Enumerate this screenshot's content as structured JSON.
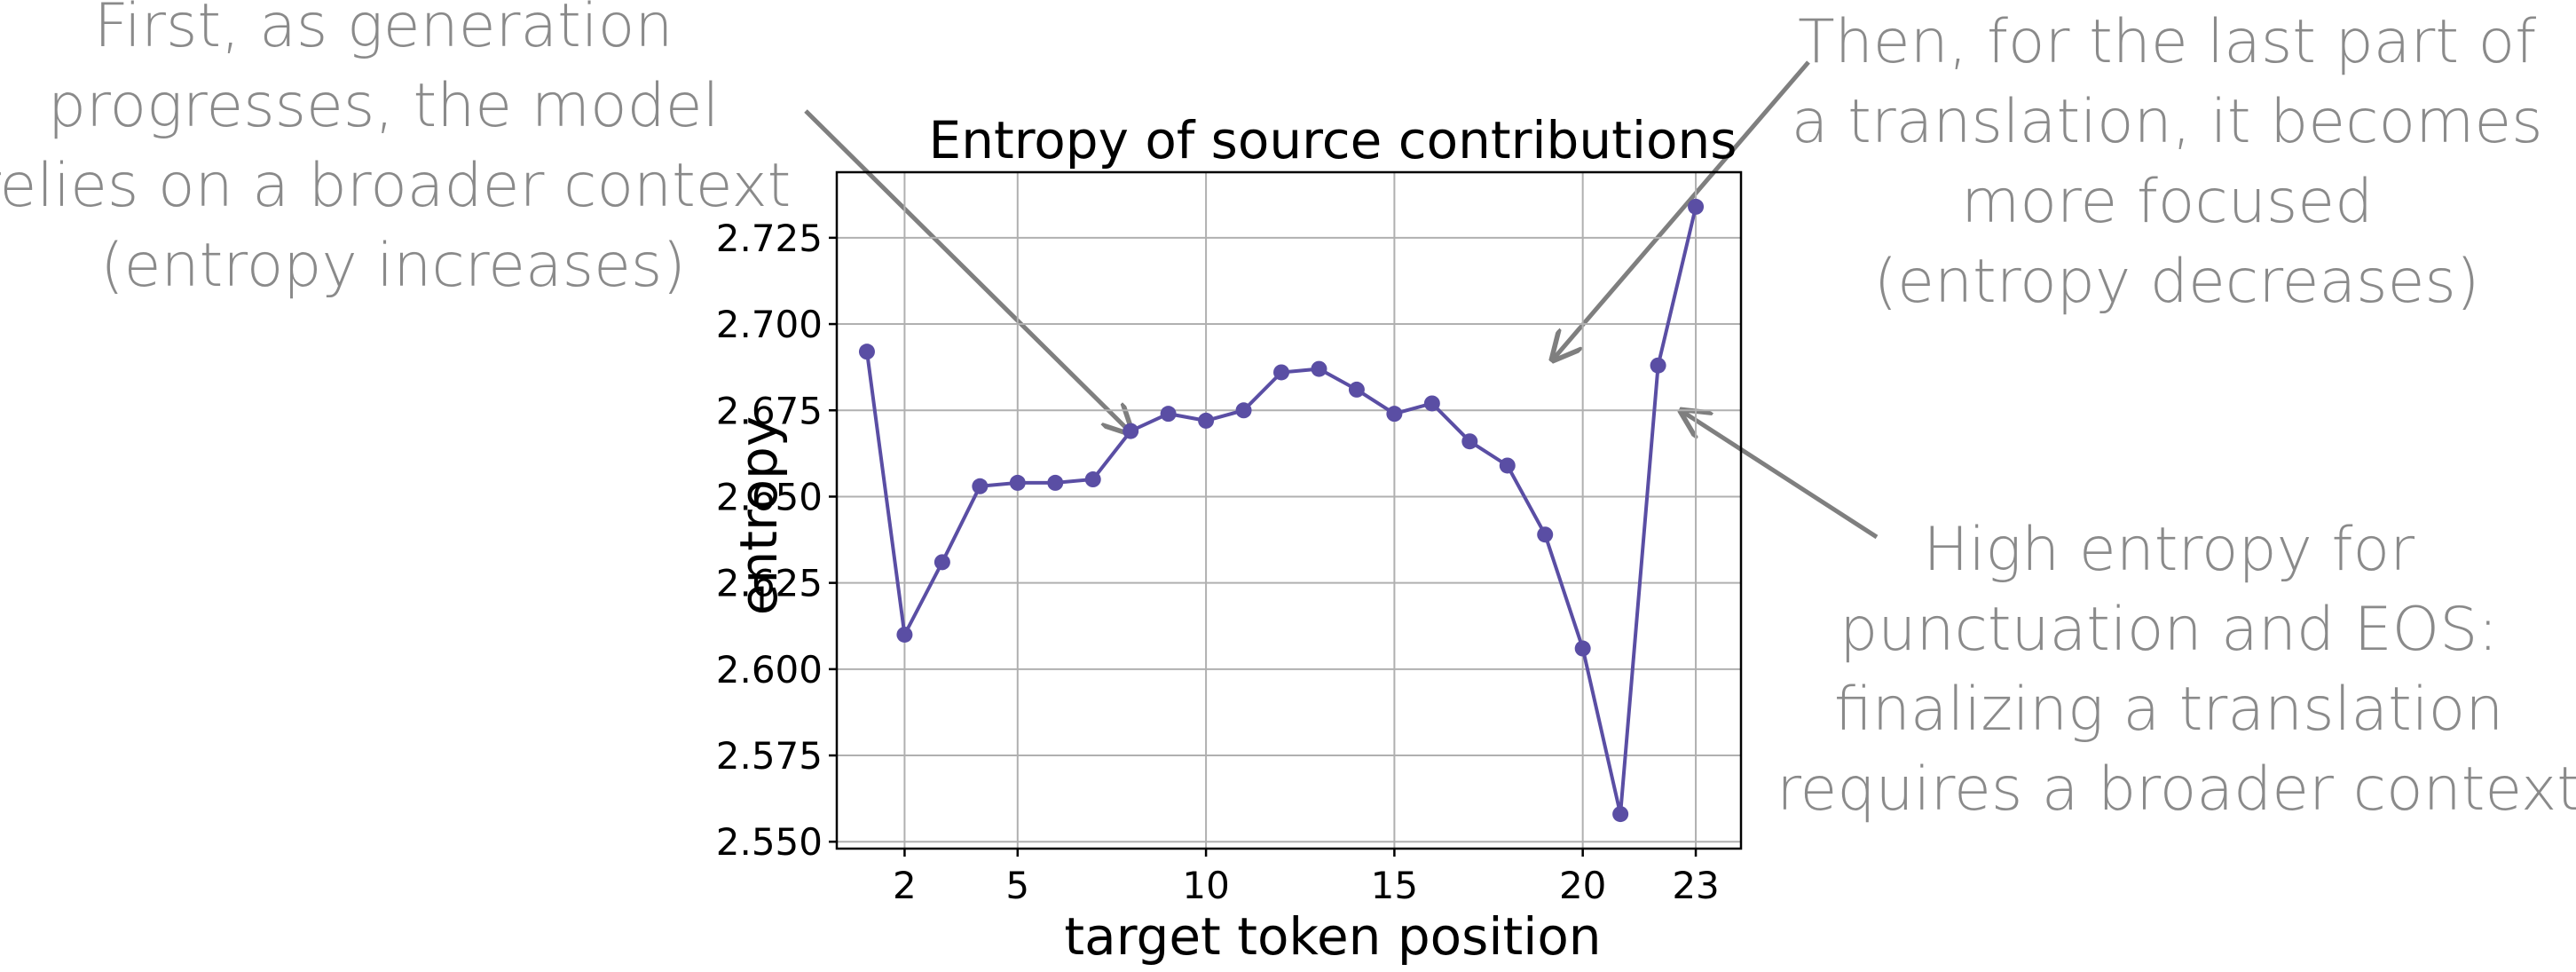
{
  "annotations": {
    "left": [
      "First, as generation",
      "progresses, the model",
      "relies on a broader context",
      "(entropy increases)"
    ],
    "top_right": [
      "Then, for the last part of",
      "a translation, it becomes",
      "more focused",
      "(entropy decreases)"
    ],
    "bottom_right": [
      "High entropy for",
      "punctuation and EOS:",
      "finalizing a translation",
      "requires a broader context"
    ]
  },
  "colors": {
    "series": "#5a4ea4",
    "annotation": "#8a8a8a",
    "arrow": "#7f7f7f"
  },
  "chart_data": {
    "type": "line",
    "title": "Entropy of source contributions",
    "xlabel": "target token position",
    "ylabel": "entropy",
    "x": [
      1,
      2,
      3,
      4,
      5,
      6,
      7,
      8,
      9,
      10,
      11,
      12,
      13,
      14,
      15,
      16,
      17,
      18,
      19,
      20,
      21,
      22,
      23
    ],
    "series": [
      {
        "values": [
          2.692,
          2.61,
          2.631,
          2.653,
          2.654,
          2.654,
          2.655,
          2.669,
          2.674,
          2.672,
          2.675,
          2.686,
          2.687,
          2.681,
          2.674,
          2.677,
          2.666,
          2.659,
          2.639,
          2.606,
          2.558,
          2.688,
          2.734
        ]
      }
    ],
    "xticks": [
      2,
      5,
      10,
      15,
      20,
      23
    ],
    "yticks": [
      2.55,
      2.575,
      2.6,
      2.625,
      2.65,
      2.675,
      2.7,
      2.725
    ],
    "ytick_labels": [
      "2.550",
      "2.575",
      "2.600",
      "2.625",
      "2.650",
      "2.675",
      "2.700",
      "2.725"
    ],
    "xlim": [
      0.2,
      24.2
    ],
    "ylim": [
      2.548,
      2.744
    ],
    "grid": true,
    "markers": true
  }
}
